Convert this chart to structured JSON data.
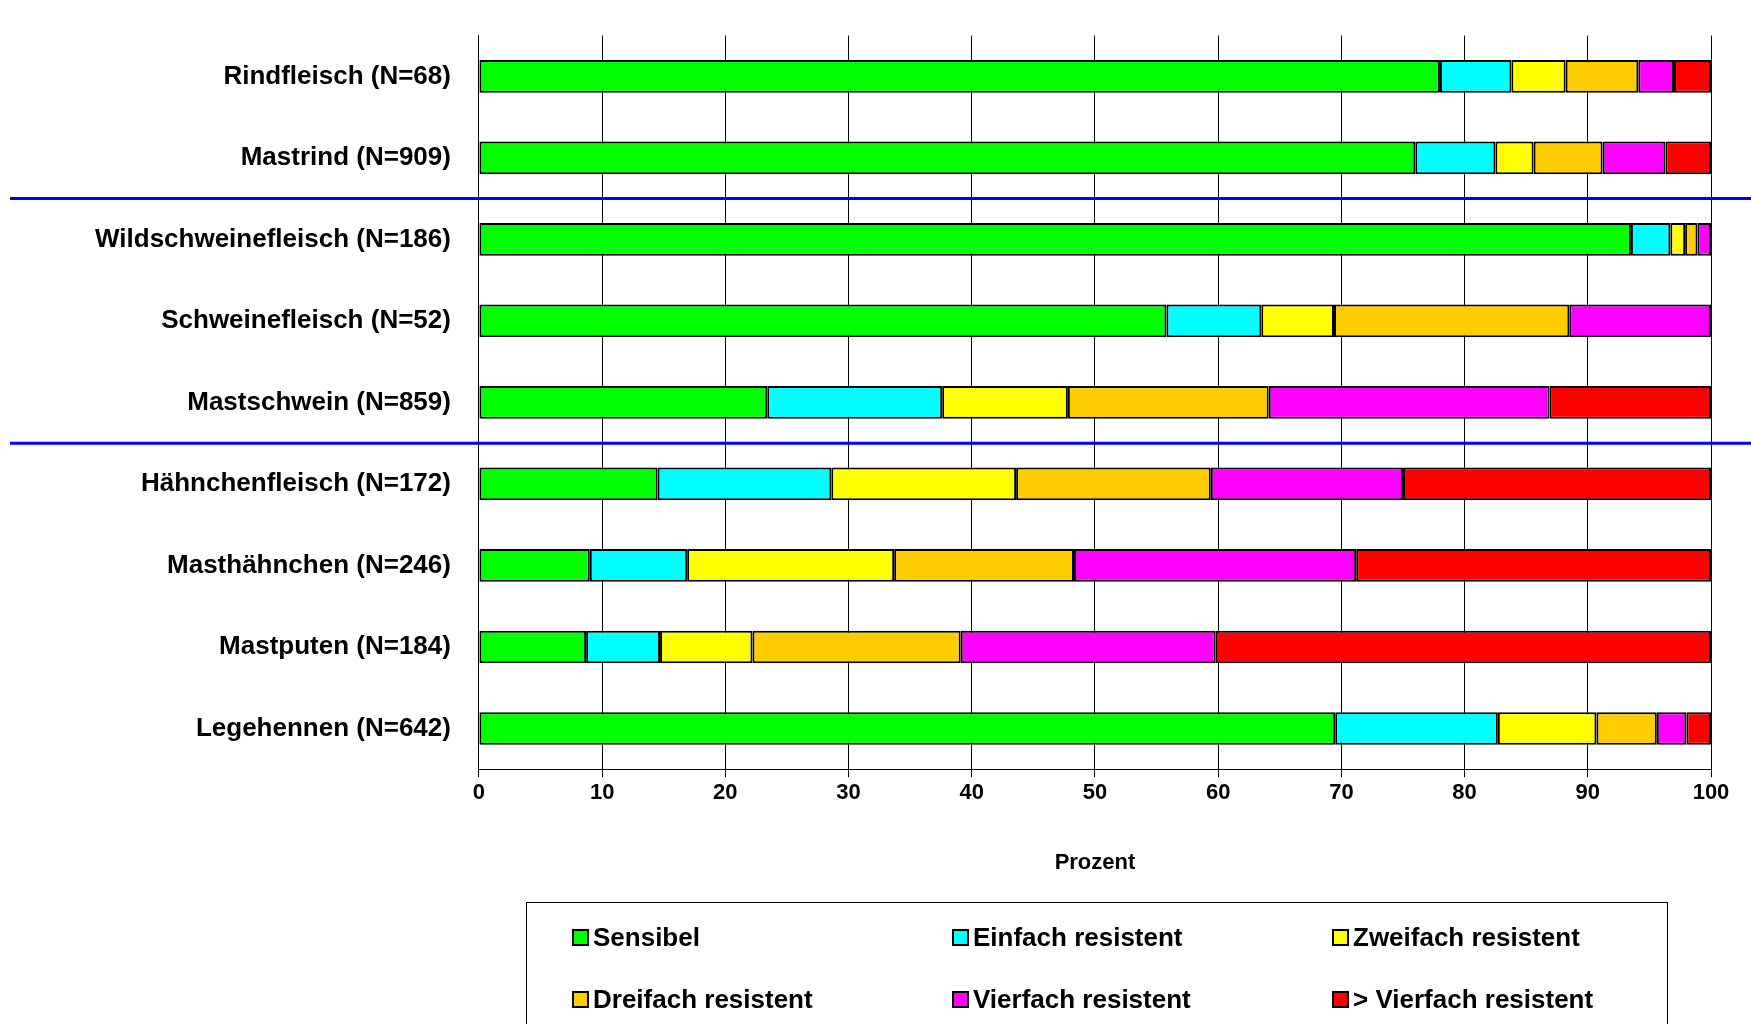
{
  "chart_data": {
    "type": "bar",
    "orientation": "horizontal",
    "stacked": true,
    "xlabel": "Prozent",
    "categories": [
      "Rindfleisch (N=68)",
      "Mastrind (N=909)",
      "Wildschweinefleisch (N=186)",
      "Schweinefleisch (N=52)",
      "Mastschwein (N=859)",
      "Hähnchenfleisch (N=172)",
      "Masthähnchen (N=246)",
      "Mastputen (N=184)",
      "Legehennen (N=642)"
    ],
    "series": [
      {
        "name": "Sensibel",
        "color": "#00ff00",
        "values": [
          78.0,
          76.0,
          93.5,
          55.8,
          23.4,
          14.5,
          9.0,
          8.7,
          69.5
        ]
      },
      {
        "name": "Einfach resistent",
        "color": "#00ffff",
        "values": [
          5.8,
          6.5,
          3.2,
          7.7,
          14.2,
          14.1,
          7.9,
          6.0,
          13.2
        ]
      },
      {
        "name": "Zweifach resistent",
        "color": "#ffff00",
        "values": [
          4.4,
          3.1,
          1.2,
          5.9,
          10.2,
          15.0,
          16.8,
          7.5,
          8.0
        ]
      },
      {
        "name": "Dreifach resistent",
        "color": "#ffcc00",
        "values": [
          5.9,
          5.6,
          1.0,
          19.1,
          16.3,
          15.8,
          14.6,
          16.9,
          4.9
        ]
      },
      {
        "name": "Vierfach resistent",
        "color": "#ff00ff",
        "values": [
          2.9,
          5.1,
          1.1,
          11.5,
          22.8,
          15.6,
          22.9,
          20.7,
          2.4
        ]
      },
      {
        "name": "> Vierfach resistent",
        "color": "#ff0000",
        "values": [
          3.0,
          3.7,
          0,
          0,
          13.1,
          25.0,
          28.8,
          40.2,
          2.0
        ]
      }
    ],
    "xlim": [
      0,
      100
    ],
    "xticks": [
      0,
      10,
      20,
      30,
      40,
      50,
      60,
      70,
      80,
      90,
      100
    ],
    "grid": "x",
    "legend": "bottom"
  }
}
